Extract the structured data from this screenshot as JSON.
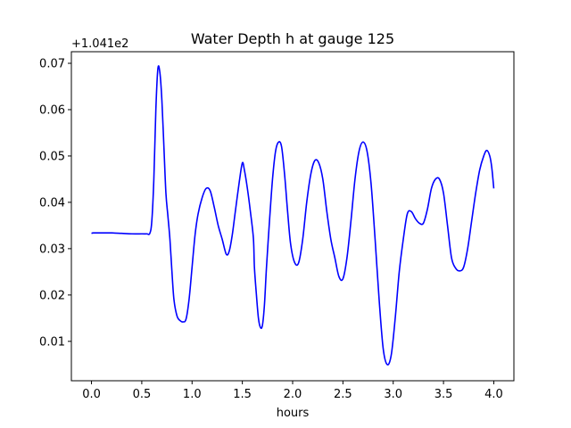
{
  "chart_data": {
    "type": "line",
    "title": "Water Depth h at gauge 125",
    "xlabel": "hours",
    "ylabel": "",
    "offset_text": "+1.041e2",
    "xlim": [
      -0.2,
      4.2
    ],
    "ylim": [
      0.0015,
      0.0725
    ],
    "x_ticks": [
      0.0,
      0.5,
      1.0,
      1.5,
      2.0,
      2.5,
      3.0,
      3.5,
      4.0
    ],
    "x_tick_labels": [
      "0.0",
      "0.5",
      "1.0",
      "1.5",
      "2.0",
      "2.5",
      "3.0",
      "3.5",
      "4.0"
    ],
    "y_ticks": [
      0.01,
      0.02,
      0.03,
      0.04,
      0.05,
      0.06,
      0.07
    ],
    "y_tick_labels": [
      "0.01",
      "0.02",
      "0.03",
      "0.04",
      "0.05",
      "0.06",
      "0.07"
    ],
    "grid": false,
    "legend": "none",
    "series": [
      {
        "color": "#0000ff",
        "x": [
          0.0,
          0.02,
          0.1,
          0.2,
          0.3,
          0.4,
          0.5,
          0.55,
          0.58,
          0.6,
          0.62,
          0.64,
          0.66,
          0.68,
          0.7,
          0.72,
          0.74,
          0.76,
          0.78,
          0.8,
          0.82,
          0.85,
          0.88,
          0.91,
          0.94,
          0.97,
          1.0,
          1.03,
          1.06,
          1.1,
          1.14,
          1.18,
          1.22,
          1.26,
          1.3,
          1.34,
          1.37,
          1.4,
          1.43,
          1.47,
          1.5,
          1.52,
          1.55,
          1.58,
          1.61,
          1.62,
          1.64,
          1.66,
          1.68,
          1.7,
          1.72,
          1.74,
          1.77,
          1.8,
          1.83,
          1.86,
          1.89,
          1.92,
          1.95,
          1.98,
          2.02,
          2.06,
          2.1,
          2.14,
          2.18,
          2.22,
          2.26,
          2.3,
          2.34,
          2.38,
          2.42,
          2.46,
          2.5,
          2.54,
          2.58,
          2.62,
          2.66,
          2.7,
          2.74,
          2.78,
          2.82,
          2.86,
          2.9,
          2.94,
          2.98,
          3.02,
          3.06,
          3.1,
          3.14,
          3.18,
          3.22,
          3.26,
          3.3,
          3.34,
          3.38,
          3.42,
          3.46,
          3.5,
          3.54,
          3.58,
          3.62,
          3.66,
          3.7,
          3.74,
          3.78,
          3.82,
          3.86,
          3.9,
          3.93,
          3.96,
          3.98,
          4.0
        ],
        "y": [
          0.0333,
          0.0334,
          0.0334,
          0.0334,
          0.0333,
          0.0332,
          0.0332,
          0.0332,
          0.0333,
          0.036,
          0.045,
          0.06,
          0.0688,
          0.068,
          0.062,
          0.052,
          0.042,
          0.037,
          0.032,
          0.025,
          0.019,
          0.0155,
          0.0145,
          0.0142,
          0.0148,
          0.019,
          0.026,
          0.033,
          0.0375,
          0.041,
          0.043,
          0.0425,
          0.039,
          0.035,
          0.032,
          0.0288,
          0.0295,
          0.033,
          0.038,
          0.0445,
          0.0485,
          0.047,
          0.043,
          0.038,
          0.0322,
          0.026,
          0.02,
          0.015,
          0.013,
          0.0135,
          0.018,
          0.026,
          0.036,
          0.045,
          0.051,
          0.053,
          0.052,
          0.046,
          0.038,
          0.031,
          0.027,
          0.027,
          0.032,
          0.04,
          0.046,
          0.049,
          0.0485,
          0.045,
          0.038,
          0.032,
          0.028,
          0.024,
          0.0235,
          0.028,
          0.036,
          0.045,
          0.051,
          0.053,
          0.051,
          0.044,
          0.032,
          0.019,
          0.0085,
          0.005,
          0.007,
          0.015,
          0.025,
          0.032,
          0.0375,
          0.038,
          0.0365,
          0.0355,
          0.0355,
          0.0385,
          0.043,
          0.045,
          0.045,
          0.042,
          0.035,
          0.028,
          0.0258,
          0.0252,
          0.026,
          0.03,
          0.036,
          0.042,
          0.047,
          0.05,
          0.0512,
          0.05,
          0.0475,
          0.043
        ]
      }
    ]
  }
}
